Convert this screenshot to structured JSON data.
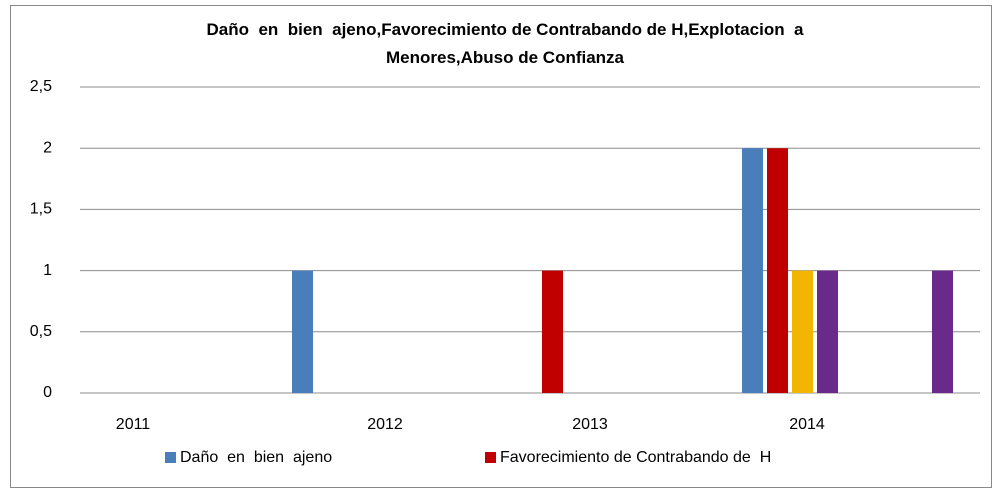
{
  "chart_data": {
    "type": "bar",
    "title": "Daño  en  bien  ajeno,Favorecimiento de Contrabando de H,Explotacion  a  Menores,Abuso de Confianza",
    "categories": [
      "2011",
      "2012",
      "2013",
      "2014"
    ],
    "series": [
      {
        "name": "Daño  en  bien  ajeno",
        "color": "#4a7ebb",
        "values": [
          0,
          1,
          0,
          2
        ]
      },
      {
        "name": "Favorecimiento de Contrabando de  H",
        "color": "#c00000",
        "values": [
          0,
          0,
          1,
          2
        ]
      },
      {
        "color": "#f2b500",
        "values": [
          0,
          0,
          0,
          1
        ]
      },
      {
        "color": "#6a2a8c",
        "values": [
          0,
          0,
          0,
          1
        ]
      },
      {
        "color": "#6a2a8c",
        "values": [
          0,
          0,
          0,
          1
        ]
      }
    ],
    "ylim": [
      0,
      2.5
    ],
    "yticks": [
      0,
      {
        "value": 0.5,
        "label": "0,5"
      },
      1,
      {
        "value": 1.5,
        "label": "1,5"
      },
      2,
      {
        "value": 2.5,
        "label": "2,5"
      }
    ],
    "grid": true
  }
}
